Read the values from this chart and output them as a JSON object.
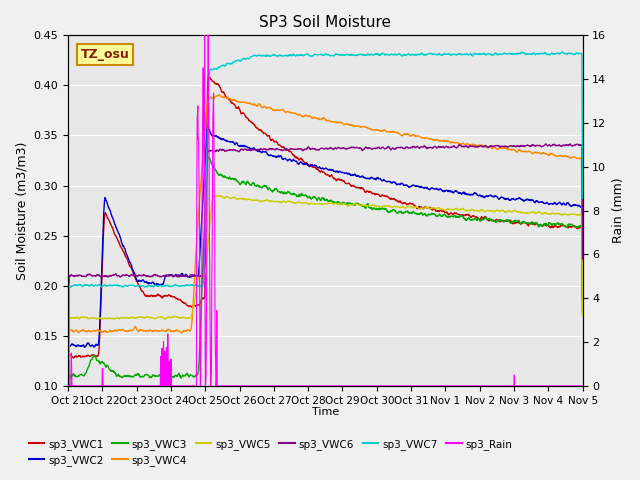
{
  "title": "SP3 Soil Moisture",
  "xlabel": "Time",
  "ylabel_left": "Soil Moisture (m3/m3)",
  "ylabel_right": "Rain (mm)",
  "ylim_left": [
    0.1,
    0.45
  ],
  "ylim_right": [
    0,
    16
  ],
  "yticks_left": [
    0.1,
    0.15,
    0.2,
    0.25,
    0.3,
    0.35,
    0.4,
    0.45
  ],
  "yticks_right": [
    0,
    2,
    4,
    6,
    8,
    10,
    12,
    14,
    16
  ],
  "xtick_labels": [
    "Oct 21",
    "Oct 22",
    "Oct 23",
    "Oct 24",
    "Oct 25",
    "Oct 26",
    "Oct 27",
    "Oct 28",
    "Oct 29",
    "Oct 30",
    "Oct 31",
    "Nov 1",
    "Nov 2",
    "Nov 3",
    "Nov 4",
    "Nov 5"
  ],
  "plot_bg_color": "#e8e8e8",
  "figure_bg_color": "#f0f0f0",
  "annotation_text": "TZ_osu",
  "annotation_bg": "#ffff99",
  "annotation_border": "#cc8800",
  "series_colors": {
    "sp3_VWC1": "#cc0000",
    "sp3_VWC2": "#0000cc",
    "sp3_VWC3": "#00aa00",
    "sp3_VWC4": "#ff8800",
    "sp3_VWC5": "#cccc00",
    "sp3_VWC6": "#880088",
    "sp3_VWC7": "#00cccc",
    "sp3_Rain": "#ff00ff"
  },
  "n_points": 1440,
  "days": 15
}
